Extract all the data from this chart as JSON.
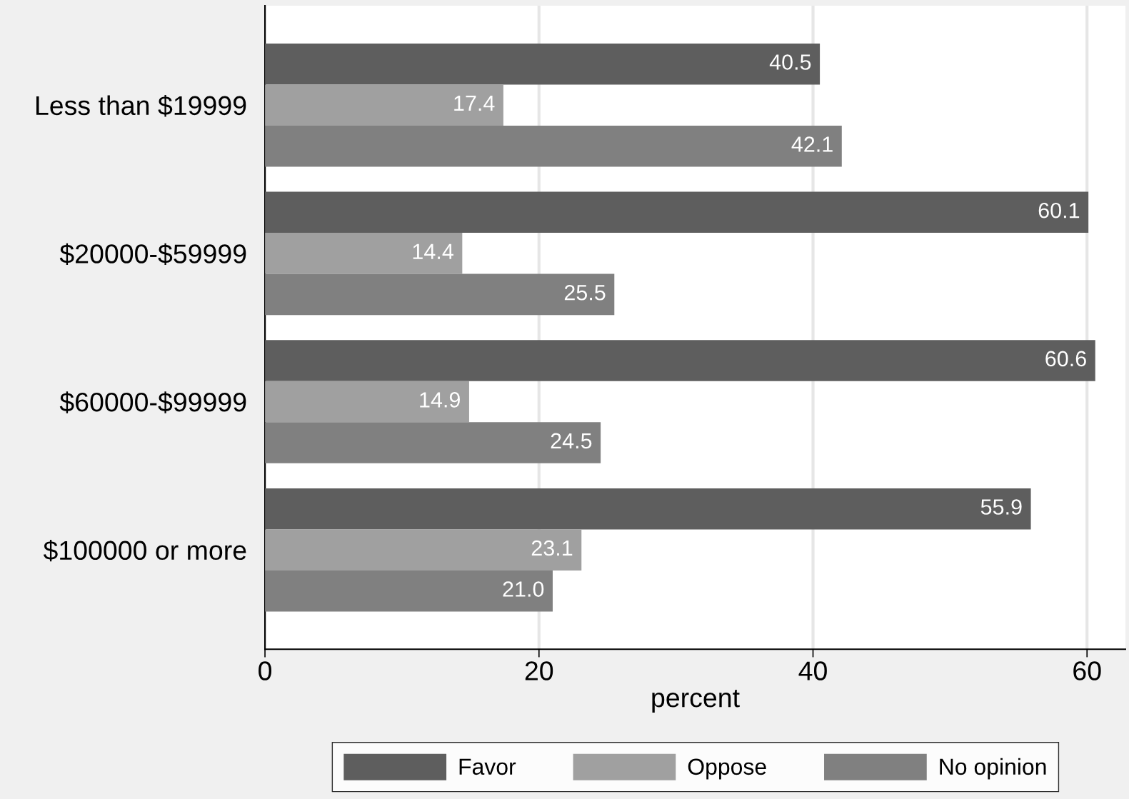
{
  "chart_data": {
    "type": "bar",
    "orientation": "horizontal",
    "xlabel": "percent",
    "categories": [
      "Less than $19999",
      "$20000-$59999",
      "$60000-$99999",
      "$100000 or more"
    ],
    "series": [
      {
        "name": "Favor",
        "color": "#5e5e5e",
        "values": [
          40.5,
          60.1,
          60.6,
          55.9
        ],
        "value_labels": [
          "40.5",
          "60.1",
          "60.6",
          "55.9"
        ]
      },
      {
        "name": "Oppose",
        "color": "#a0a0a0",
        "values": [
          17.4,
          14.4,
          14.9,
          23.1
        ],
        "value_labels": [
          "17.4",
          "14.4",
          "14.9",
          "23.1"
        ]
      },
      {
        "name": "No opinion",
        "color": "#808080",
        "values": [
          42.1,
          25.5,
          24.5,
          21.0
        ],
        "value_labels": [
          "42.1",
          "25.5",
          "24.5",
          "21.0"
        ]
      }
    ],
    "xlim": [
      0,
      62.8
    ],
    "xticks": [
      0,
      20,
      40,
      60
    ],
    "grid": "x",
    "legend": "bottom"
  }
}
